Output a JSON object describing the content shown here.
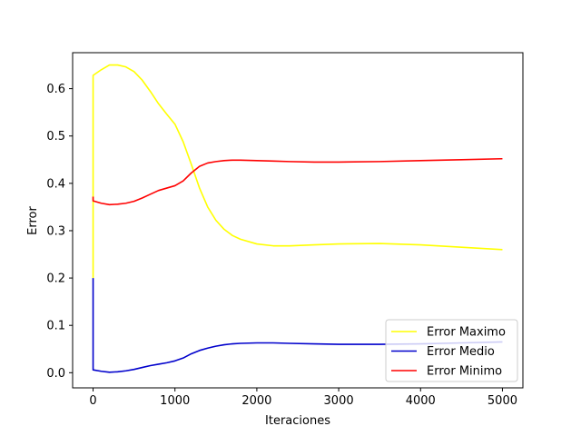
{
  "chart_data": {
    "type": "line",
    "title": "",
    "xlabel": "Iteraciones",
    "ylabel": "Error",
    "xlim": [
      -250,
      5250
    ],
    "ylim": [
      -0.032,
      0.676
    ],
    "xticks": [
      0,
      1000,
      2000,
      3000,
      4000,
      5000
    ],
    "xtick_labels": [
      "0",
      "1000",
      "2000",
      "3000",
      "4000",
      "5000"
    ],
    "yticks": [
      0.0,
      0.1,
      0.2,
      0.3,
      0.4,
      0.5,
      0.6
    ],
    "ytick_labels": [
      "0.0",
      "0.1",
      "0.2",
      "0.3",
      "0.4",
      "0.5",
      "0.6"
    ],
    "grid": false,
    "legend_position": "bottom-right",
    "series": [
      {
        "name": "Error Maximo",
        "color": "#ffff00",
        "x": [
          0,
          0,
          100,
          200,
          300,
          400,
          500,
          600,
          700,
          800,
          900,
          1000,
          1100,
          1200,
          1300,
          1400,
          1500,
          1600,
          1700,
          1800,
          2000,
          2200,
          2400,
          2700,
          3000,
          3500,
          4000,
          4500,
          5000
        ],
        "y": [
          0.2,
          0.628,
          0.64,
          0.65,
          0.65,
          0.646,
          0.636,
          0.618,
          0.594,
          0.568,
          0.546,
          0.525,
          0.488,
          0.44,
          0.39,
          0.35,
          0.322,
          0.303,
          0.29,
          0.282,
          0.272,
          0.268,
          0.268,
          0.27,
          0.272,
          0.273,
          0.27,
          0.265,
          0.26
        ]
      },
      {
        "name": "Error Medio",
        "color": "#0000cc",
        "x": [
          0,
          0,
          100,
          200,
          300,
          400,
          500,
          600,
          700,
          800,
          900,
          1000,
          1100,
          1200,
          1300,
          1400,
          1500,
          1600,
          1700,
          1800,
          2000,
          2200,
          2400,
          2700,
          3000,
          3500,
          4000,
          4500,
          5000
        ],
        "y": [
          0.2,
          0.006,
          0.003,
          0.001,
          0.002,
          0.004,
          0.007,
          0.011,
          0.015,
          0.018,
          0.021,
          0.025,
          0.031,
          0.04,
          0.047,
          0.052,
          0.056,
          0.059,
          0.061,
          0.062,
          0.063,
          0.063,
          0.062,
          0.061,
          0.06,
          0.06,
          0.061,
          0.063,
          0.065
        ]
      },
      {
        "name": "Error Minimo",
        "color": "#ff0000",
        "x": [
          0,
          0,
          100,
          200,
          300,
          400,
          500,
          600,
          700,
          800,
          900,
          1000,
          1100,
          1200,
          1300,
          1400,
          1500,
          1600,
          1700,
          1800,
          2000,
          2200,
          2400,
          2700,
          3000,
          3500,
          4000,
          4500,
          5000
        ],
        "y": [
          0.372,
          0.363,
          0.358,
          0.355,
          0.356,
          0.358,
          0.362,
          0.369,
          0.377,
          0.385,
          0.39,
          0.395,
          0.405,
          0.422,
          0.436,
          0.443,
          0.446,
          0.448,
          0.449,
          0.449,
          0.448,
          0.447,
          0.446,
          0.445,
          0.445,
          0.446,
          0.448,
          0.45,
          0.452
        ]
      }
    ]
  }
}
